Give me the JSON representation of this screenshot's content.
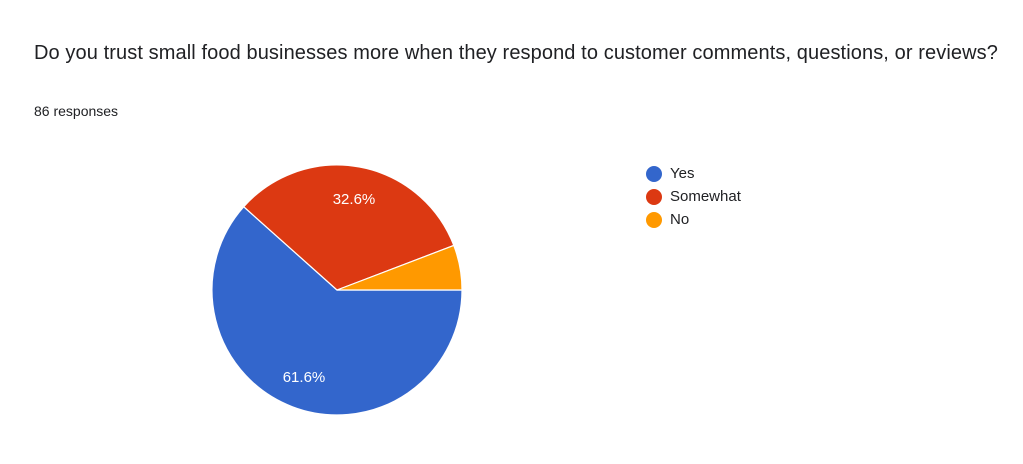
{
  "header": {
    "title": "Do you trust small food businesses more when they respond to customer comments, questions, or reviews?",
    "responses": "86 responses"
  },
  "legend": [
    {
      "label": "Yes",
      "color": "#3366cc"
    },
    {
      "label": "Somewhat",
      "color": "#dc3912"
    },
    {
      "label": "No",
      "color": "#ff9900"
    }
  ],
  "slice_labels": {
    "yes": "61.6%",
    "somewhat": "32.6%"
  },
  "chart_data": {
    "type": "pie",
    "title": "Do you trust small food businesses more when they respond to customer comments, questions, or reviews?",
    "subtitle": "86 responses",
    "categories": [
      "Yes",
      "Somewhat",
      "No"
    ],
    "values": [
      61.6,
      32.6,
      5.8
    ],
    "counts": [
      53,
      28,
      5
    ],
    "colors": [
      "#3366cc",
      "#dc3912",
      "#ff9900"
    ],
    "data_labels": [
      "61.6%",
      "32.6%",
      ""
    ],
    "legend_position": "right"
  }
}
